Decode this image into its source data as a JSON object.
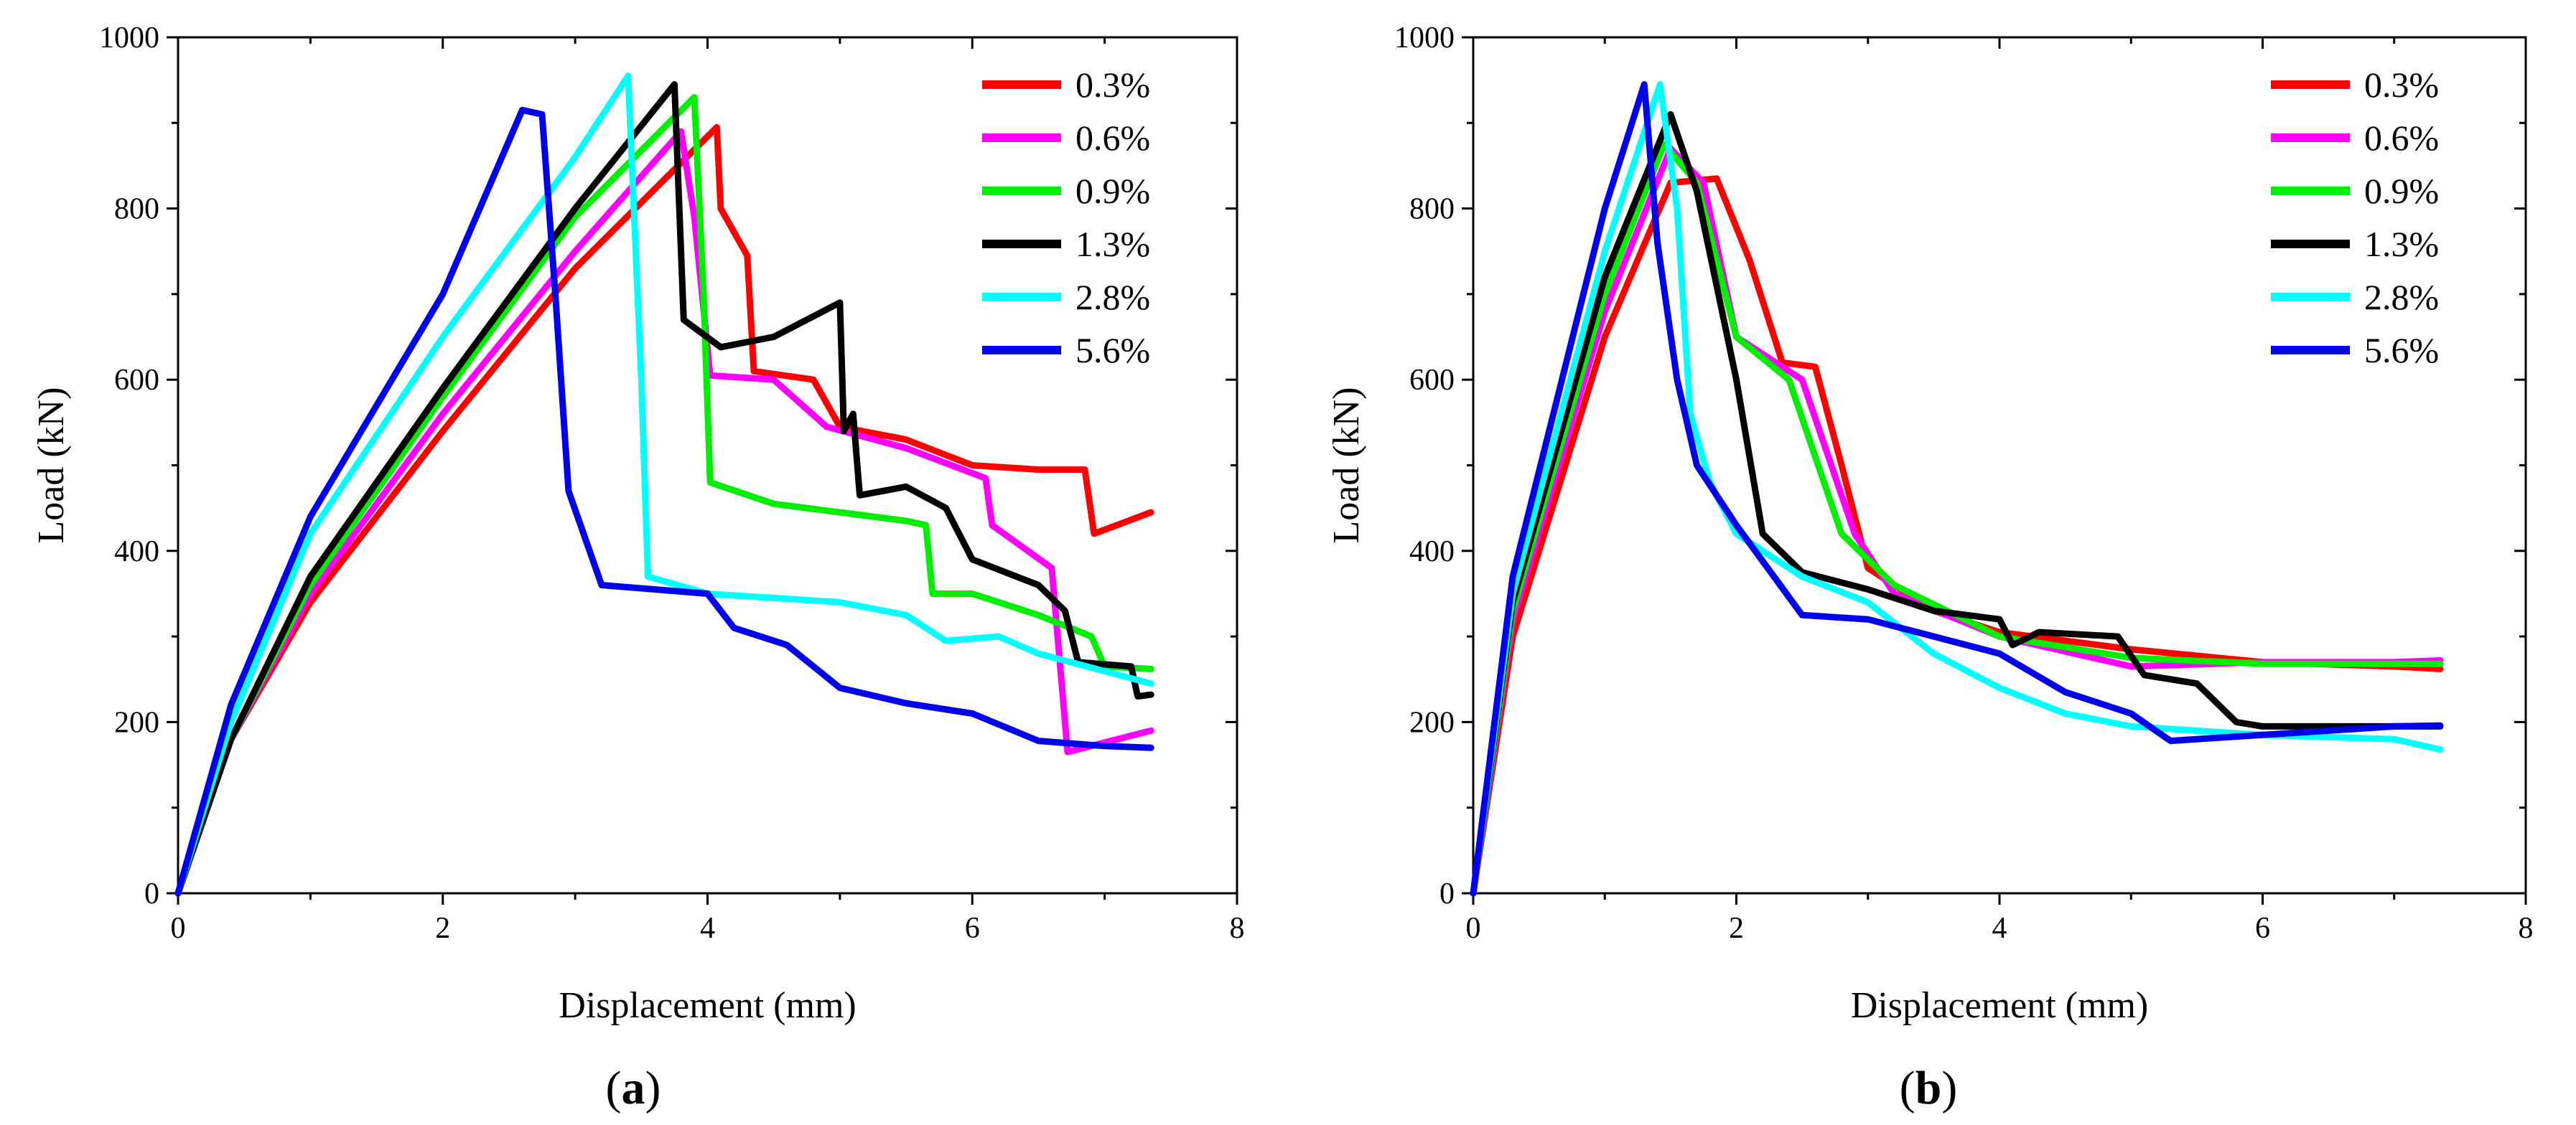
{
  "chart_data": [
    {
      "type": "line",
      "panel_label": "(a)",
      "xlabel": "Displacement (mm)",
      "ylabel": "Load (kN)",
      "xlim": [
        0,
        8
      ],
      "ylim": [
        0,
        1000
      ],
      "xticks": [
        0,
        2,
        4,
        6,
        8
      ],
      "yticks": [
        0,
        200,
        400,
        600,
        800,
        1000
      ],
      "grid": false,
      "legend_position": "top-right",
      "series": [
        {
          "name": "0.3%",
          "color": "#ff0000",
          "points": [
            [
              0,
              0
            ],
            [
              0.4,
              180
            ],
            [
              1,
              340
            ],
            [
              2,
              540
            ],
            [
              3,
              730
            ],
            [
              4.07,
              895
            ],
            [
              4.1,
              800
            ],
            [
              4.3,
              745
            ],
            [
              4.35,
              610
            ],
            [
              4.8,
              600
            ],
            [
              5,
              545
            ],
            [
              5.5,
              530
            ],
            [
              6,
              500
            ],
            [
              6.5,
              495
            ],
            [
              6.85,
              495
            ],
            [
              6.92,
              420
            ],
            [
              7.35,
              445
            ]
          ]
        },
        {
          "name": "0.6%",
          "color": "#ff00ff",
          "points": [
            [
              0,
              0
            ],
            [
              0.4,
              180
            ],
            [
              1,
              350
            ],
            [
              2,
              560
            ],
            [
              3,
              750
            ],
            [
              3.8,
              890
            ],
            [
              3.9,
              790
            ],
            [
              4.02,
              605
            ],
            [
              4.5,
              600
            ],
            [
              4.9,
              545
            ],
            [
              5.5,
              520
            ],
            [
              6.1,
              485
            ],
            [
              6.15,
              430
            ],
            [
              6.6,
              380
            ],
            [
              6.72,
              165
            ],
            [
              7.35,
              190
            ]
          ]
        },
        {
          "name": "0.9%",
          "color": "#00ee00",
          "points": [
            [
              0,
              0
            ],
            [
              0.4,
              180
            ],
            [
              1,
              360
            ],
            [
              2,
              580
            ],
            [
              3,
              790
            ],
            [
              3.9,
              930
            ],
            [
              3.97,
              700
            ],
            [
              4.02,
              480
            ],
            [
              4.5,
              455
            ],
            [
              5.5,
              435
            ],
            [
              5.65,
              430
            ],
            [
              5.7,
              350
            ],
            [
              6,
              350
            ],
            [
              6.5,
              325
            ],
            [
              6.9,
              300
            ],
            [
              7,
              265
            ],
            [
              7.35,
              262
            ]
          ]
        },
        {
          "name": "1.3%",
          "color": "#000000",
          "points": [
            [
              0,
              0
            ],
            [
              0.4,
              180
            ],
            [
              1,
              370
            ],
            [
              2,
              590
            ],
            [
              3,
              800
            ],
            [
              3.75,
              945
            ],
            [
              3.82,
              670
            ],
            [
              4.1,
              638
            ],
            [
              4.5,
              650
            ],
            [
              5,
              690
            ],
            [
              5.03,
              540
            ],
            [
              5.1,
              560
            ],
            [
              5.15,
              465
            ],
            [
              5.5,
              475
            ],
            [
              5.8,
              450
            ],
            [
              6,
              390
            ],
            [
              6.5,
              360
            ],
            [
              6.7,
              330
            ],
            [
              6.8,
              270
            ],
            [
              7.2,
              265
            ],
            [
              7.25,
              230
            ],
            [
              7.35,
              232
            ]
          ]
        },
        {
          "name": "2.8%",
          "color": "#00ffff",
          "points": [
            [
              0,
              0
            ],
            [
              0.4,
              200
            ],
            [
              1,
              420
            ],
            [
              2,
              650
            ],
            [
              3,
              860
            ],
            [
              3.4,
              955
            ],
            [
              3.5,
              600
            ],
            [
              3.55,
              370
            ],
            [
              4,
              350
            ],
            [
              4.5,
              345
            ],
            [
              5,
              340
            ],
            [
              5.5,
              325
            ],
            [
              5.8,
              295
            ],
            [
              6.2,
              300
            ],
            [
              6.5,
              280
            ],
            [
              7.35,
              245
            ]
          ]
        },
        {
          "name": "5.6%",
          "color": "#0000ee",
          "points": [
            [
              0,
              0
            ],
            [
              0.4,
              220
            ],
            [
              1,
              440
            ],
            [
              2,
              700
            ],
            [
              2.6,
              915
            ],
            [
              2.75,
              910
            ],
            [
              2.85,
              700
            ],
            [
              2.95,
              470
            ],
            [
              3.2,
              360
            ],
            [
              4,
              350
            ],
            [
              4.2,
              310
            ],
            [
              4.6,
              290
            ],
            [
              5,
              240
            ],
            [
              5.5,
              222
            ],
            [
              6,
              210
            ],
            [
              6.5,
              178
            ],
            [
              7,
              172
            ],
            [
              7.35,
              170
            ]
          ]
        }
      ]
    },
    {
      "type": "line",
      "panel_label": "(b)",
      "xlabel": "Displacement (mm)",
      "ylabel": "Load (kN)",
      "xlim": [
        0,
        8
      ],
      "ylim": [
        0,
        1000
      ],
      "xticks": [
        0,
        2,
        4,
        6,
        8
      ],
      "yticks": [
        0,
        200,
        400,
        600,
        800,
        1000
      ],
      "grid": false,
      "legend_position": "top-right",
      "series": [
        {
          "name": "0.3%",
          "color": "#ff0000",
          "points": [
            [
              0,
              0
            ],
            [
              0.3,
              300
            ],
            [
              1,
              650
            ],
            [
              1.5,
              830
            ],
            [
              1.85,
              835
            ],
            [
              2.1,
              740
            ],
            [
              2.35,
              620
            ],
            [
              2.6,
              615
            ],
            [
              2.8,
              500
            ],
            [
              3,
              380
            ],
            [
              3.5,
              330
            ],
            [
              4,
              305
            ],
            [
              5,
              285
            ],
            [
              6,
              270
            ],
            [
              7,
              265
            ],
            [
              7.35,
              262
            ]
          ]
        },
        {
          "name": "0.6%",
          "color": "#ff00ff",
          "points": [
            [
              0,
              0
            ],
            [
              0.3,
              320
            ],
            [
              1,
              680
            ],
            [
              1.5,
              870
            ],
            [
              1.75,
              830
            ],
            [
              2,
              650
            ],
            [
              2.5,
              600
            ],
            [
              2.9,
              420
            ],
            [
              3.2,
              350
            ],
            [
              4,
              300
            ],
            [
              5,
              265
            ],
            [
              6,
              270
            ],
            [
              7,
              270
            ],
            [
              7.35,
              272
            ]
          ]
        },
        {
          "name": "0.9%",
          "color": "#00ee00",
          "points": [
            [
              0,
              0
            ],
            [
              0.3,
              330
            ],
            [
              1,
              700
            ],
            [
              1.45,
              875
            ],
            [
              1.7,
              830
            ],
            [
              2,
              650
            ],
            [
              2.4,
              600
            ],
            [
              2.8,
              420
            ],
            [
              3.2,
              360
            ],
            [
              4,
              300
            ],
            [
              5,
              275
            ],
            [
              6,
              268
            ],
            [
              7,
              268
            ],
            [
              7.35,
              268
            ]
          ]
        },
        {
          "name": "1.3%",
          "color": "#000000",
          "points": [
            [
              0,
              0
            ],
            [
              0.3,
              340
            ],
            [
              1,
              720
            ],
            [
              1.5,
              910
            ],
            [
              1.7,
              820
            ],
            [
              2,
              600
            ],
            [
              2.2,
              420
            ],
            [
              2.5,
              375
            ],
            [
              3,
              355
            ],
            [
              3.5,
              330
            ],
            [
              4,
              320
            ],
            [
              4.1,
              290
            ],
            [
              4.3,
              305
            ],
            [
              4.9,
              300
            ],
            [
              5.1,
              255
            ],
            [
              5.5,
              245
            ],
            [
              5.8,
              200
            ],
            [
              6,
              195
            ],
            [
              7,
              195
            ],
            [
              7.35,
              195
            ]
          ]
        },
        {
          "name": "2.8%",
          "color": "#00ffff",
          "points": [
            [
              0,
              0
            ],
            [
              0.3,
              350
            ],
            [
              1,
              750
            ],
            [
              1.42,
              945
            ],
            [
              1.55,
              800
            ],
            [
              1.65,
              560
            ],
            [
              1.8,
              480
            ],
            [
              2,
              420
            ],
            [
              2.5,
              370
            ],
            [
              3,
              340
            ],
            [
              3.5,
              280
            ],
            [
              4,
              240
            ],
            [
              4.5,
              210
            ],
            [
              5,
              195
            ],
            [
              6,
              185
            ],
            [
              7,
              180
            ],
            [
              7.35,
              168
            ]
          ]
        },
        {
          "name": "5.6%",
          "color": "#0000ee",
          "points": [
            [
              0,
              0
            ],
            [
              0.3,
              370
            ],
            [
              1,
              800
            ],
            [
              1.3,
              945
            ],
            [
              1.4,
              760
            ],
            [
              1.55,
              600
            ],
            [
              1.7,
              500
            ],
            [
              2,
              430
            ],
            [
              2.5,
              325
            ],
            [
              3,
              320
            ],
            [
              3.5,
              300
            ],
            [
              4,
              280
            ],
            [
              4.5,
              235
            ],
            [
              5,
              210
            ],
            [
              5.3,
              178
            ],
            [
              6,
              185
            ],
            [
              7,
              195
            ],
            [
              7.35,
              196
            ]
          ]
        }
      ]
    }
  ]
}
